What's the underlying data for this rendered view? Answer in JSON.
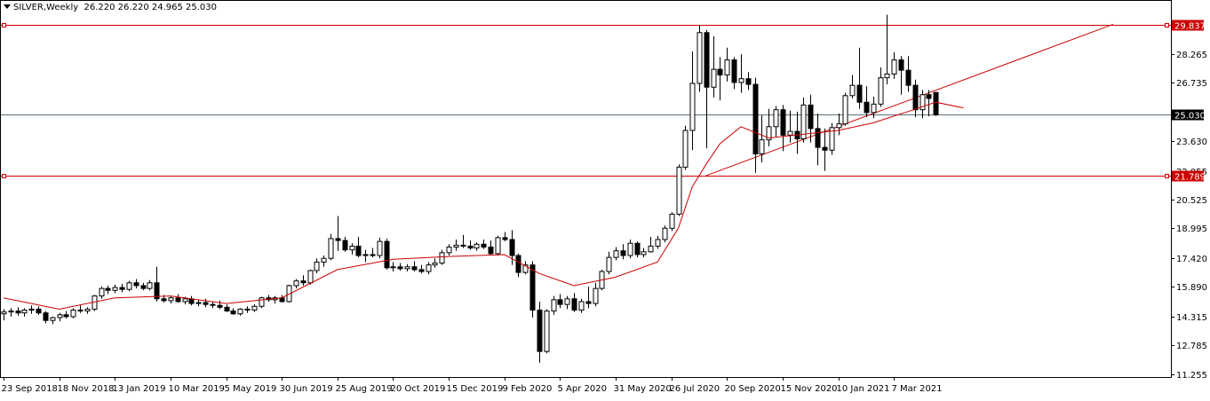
{
  "header": {
    "symbol": "SILVER,Weekly",
    "ohlc": "26.220 26.220 24.965 25.030"
  },
  "colors": {
    "background": "#ffffff",
    "candle_outline": "#000000",
    "bull_body": "#ffffff",
    "bear_body": "#000000",
    "ma_line": "#cc0000",
    "hline_red": "#cc0000",
    "hline_current": "#5a6e7a",
    "label_red": "#cc0000",
    "label_current": "#000000"
  },
  "chart_data": {
    "type": "candlestick",
    "timeframe": "Weekly",
    "ylim": [
      11.255,
      31.1
    ],
    "y_ticks": [
      "28.265",
      "26.735",
      "23.630",
      "22.055",
      "20.525",
      "18.995",
      "17.420",
      "15.890",
      "14.315",
      "12.785",
      "11.255"
    ],
    "x_ticks": [
      "23 Sep 2018",
      "18 Nov 2018",
      "13 Jan 2019",
      "10 Mar 2019",
      "5 May 2019",
      "30 Jun 2019",
      "25 Aug 2019",
      "20 Oct 2019",
      "15 Dec 2019",
      "9 Feb 2020",
      "5 Apr 2020",
      "31 May 2020",
      "26 Jul 2020",
      "20 Sep 2020",
      "15 Nov 2020",
      "10 Jan 2021",
      "7 Mar 2021"
    ],
    "ohlc": [
      [
        14.45,
        14.7,
        14.1,
        14.55
      ],
      [
        14.55,
        14.75,
        14.3,
        14.6
      ],
      [
        14.6,
        14.8,
        14.35,
        14.5
      ],
      [
        14.5,
        14.75,
        14.3,
        14.65
      ],
      [
        14.65,
        14.9,
        14.45,
        14.7
      ],
      [
        14.7,
        14.85,
        14.4,
        14.5
      ],
      [
        14.5,
        14.6,
        13.95,
        14.1
      ],
      [
        14.1,
        14.3,
        13.9,
        14.25
      ],
      [
        14.25,
        14.5,
        14.05,
        14.4
      ],
      [
        14.4,
        14.6,
        14.2,
        14.3
      ],
      [
        14.3,
        14.75,
        14.2,
        14.65
      ],
      [
        14.65,
        14.9,
        14.5,
        14.6
      ],
      [
        14.6,
        14.8,
        14.45,
        14.7
      ],
      [
        14.7,
        15.45,
        14.6,
        15.4
      ],
      [
        15.4,
        15.9,
        15.25,
        15.8
      ],
      [
        15.8,
        15.95,
        15.5,
        15.7
      ],
      [
        15.7,
        16.0,
        15.55,
        15.85
      ],
      [
        15.85,
        16.05,
        15.6,
        15.75
      ],
      [
        15.75,
        16.2,
        15.65,
        16.1
      ],
      [
        16.1,
        16.3,
        15.8,
        15.95
      ],
      [
        15.95,
        16.1,
        15.7,
        15.8
      ],
      [
        15.8,
        16.25,
        15.7,
        16.1
      ],
      [
        16.1,
        16.95,
        15.1,
        15.25
      ],
      [
        15.25,
        15.45,
        15.05,
        15.15
      ],
      [
        15.15,
        15.4,
        15.0,
        15.3
      ],
      [
        15.3,
        15.5,
        15.05,
        15.1
      ],
      [
        15.1,
        15.35,
        14.95,
        15.25
      ],
      [
        15.25,
        15.4,
        14.9,
        15.0
      ],
      [
        15.0,
        15.2,
        14.85,
        15.05
      ],
      [
        15.05,
        15.25,
        14.8,
        14.95
      ],
      [
        14.95,
        15.1,
        14.75,
        14.9
      ],
      [
        14.9,
        15.15,
        14.7,
        14.8
      ],
      [
        14.8,
        14.95,
        14.55,
        14.6
      ],
      [
        14.6,
        14.75,
        14.4,
        14.45
      ],
      [
        14.45,
        14.75,
        14.35,
        14.7
      ],
      [
        14.7,
        14.85,
        14.5,
        14.65
      ],
      [
        14.65,
        14.95,
        14.55,
        14.85
      ],
      [
        14.85,
        15.35,
        14.75,
        15.3
      ],
      [
        15.3,
        15.45,
        15.1,
        15.2
      ],
      [
        15.2,
        15.4,
        15.0,
        15.3
      ],
      [
        15.3,
        15.45,
        15.05,
        15.1
      ],
      [
        15.1,
        16.0,
        15.05,
        15.95
      ],
      [
        15.95,
        16.3,
        15.8,
        16.2
      ],
      [
        16.2,
        16.5,
        15.95,
        16.1
      ],
      [
        16.1,
        16.8,
        16.0,
        16.75
      ],
      [
        16.75,
        17.4,
        16.6,
        17.2
      ],
      [
        17.2,
        17.55,
        16.95,
        17.4
      ],
      [
        17.4,
        18.7,
        17.3,
        18.45
      ],
      [
        18.45,
        19.65,
        17.8,
        18.35
      ],
      [
        18.35,
        18.55,
        17.75,
        17.85
      ],
      [
        17.85,
        18.2,
        17.6,
        18.05
      ],
      [
        18.05,
        18.55,
        17.45,
        17.55
      ],
      [
        17.55,
        17.85,
        17.2,
        17.6
      ],
      [
        17.6,
        17.95,
        17.45,
        17.55
      ],
      [
        17.55,
        18.5,
        17.4,
        18.3
      ],
      [
        18.3,
        18.45,
        16.8,
        16.9
      ],
      [
        16.9,
        17.2,
        16.7,
        16.95
      ],
      [
        16.95,
        17.15,
        16.75,
        16.85
      ],
      [
        16.85,
        17.1,
        16.7,
        16.95
      ],
      [
        16.95,
        17.25,
        16.7,
        16.8
      ],
      [
        16.8,
        17.05,
        16.6,
        16.7
      ],
      [
        16.7,
        17.2,
        16.55,
        17.05
      ],
      [
        17.05,
        17.4,
        16.9,
        17.15
      ],
      [
        17.15,
        17.85,
        17.05,
        17.7
      ],
      [
        17.7,
        18.15,
        17.55,
        18.0
      ],
      [
        18.0,
        18.4,
        17.8,
        18.1
      ],
      [
        18.1,
        18.65,
        17.95,
        18.05
      ],
      [
        18.05,
        18.35,
        17.85,
        17.95
      ],
      [
        17.95,
        18.25,
        17.8,
        18.15
      ],
      [
        18.15,
        18.4,
        17.9,
        18.0
      ],
      [
        18.0,
        18.35,
        17.55,
        17.65
      ],
      [
        17.65,
        18.6,
        17.55,
        18.5
      ],
      [
        18.5,
        18.8,
        18.3,
        18.4
      ],
      [
        18.4,
        18.9,
        17.05,
        17.55
      ],
      [
        17.55,
        17.65,
        16.4,
        16.65
      ],
      [
        16.65,
        17.25,
        16.55,
        17.05
      ],
      [
        17.05,
        17.25,
        14.25,
        14.65
      ],
      [
        14.65,
        15.1,
        11.85,
        12.45
      ],
      [
        12.45,
        14.7,
        12.35,
        14.6
      ],
      [
        14.6,
        15.4,
        14.4,
        15.2
      ],
      [
        15.2,
        15.5,
        14.75,
        14.95
      ],
      [
        14.95,
        15.4,
        14.7,
        15.25
      ],
      [
        15.25,
        15.55,
        14.55,
        14.65
      ],
      [
        14.65,
        15.25,
        14.5,
        15.1
      ],
      [
        15.1,
        15.9,
        14.75,
        15.0
      ],
      [
        15.0,
        16.1,
        14.85,
        15.8
      ],
      [
        15.8,
        16.8,
        15.7,
        16.7
      ],
      [
        16.7,
        17.75,
        16.55,
        17.45
      ],
      [
        17.45,
        18.0,
        17.3,
        17.8
      ],
      [
        17.8,
        18.15,
        17.35,
        17.55
      ],
      [
        17.55,
        18.4,
        17.4,
        18.2
      ],
      [
        18.2,
        18.3,
        17.45,
        17.6
      ],
      [
        17.6,
        17.95,
        17.45,
        17.75
      ],
      [
        17.75,
        18.55,
        17.7,
        18.05
      ],
      [
        18.05,
        18.6,
        17.9,
        18.4
      ],
      [
        18.4,
        19.15,
        18.25,
        19.0
      ],
      [
        19.0,
        19.85,
        18.85,
        19.75
      ],
      [
        19.75,
        22.4,
        19.65,
        22.25
      ],
      [
        22.25,
        24.45,
        22.1,
        24.2
      ],
      [
        24.2,
        28.4,
        23.15,
        26.7
      ],
      [
        26.7,
        29.8,
        26.25,
        29.4
      ],
      [
        29.4,
        29.55,
        23.25,
        26.5
      ],
      [
        26.5,
        29.2,
        25.95,
        27.45
      ],
      [
        27.45,
        28.1,
        25.8,
        27.15
      ],
      [
        27.15,
        28.6,
        26.8,
        27.95
      ],
      [
        27.95,
        28.1,
        26.4,
        26.75
      ],
      [
        26.75,
        28.25,
        26.2,
        26.95
      ],
      [
        26.95,
        27.3,
        26.35,
        26.65
      ],
      [
        26.65,
        27.0,
        21.95,
        22.95
      ],
      [
        22.95,
        25.0,
        22.5,
        23.7
      ],
      [
        23.7,
        25.35,
        23.35,
        24.4
      ],
      [
        24.4,
        25.5,
        23.85,
        25.3
      ],
      [
        25.3,
        25.55,
        23.1,
        23.95
      ],
      [
        23.95,
        25.25,
        23.55,
        24.15
      ],
      [
        24.15,
        25.2,
        22.95,
        23.75
      ],
      [
        23.75,
        25.95,
        23.55,
        25.55
      ],
      [
        25.55,
        26.1,
        23.55,
        24.3
      ],
      [
        24.3,
        25.1,
        22.35,
        23.3
      ],
      [
        23.3,
        24.3,
        22.05,
        23.15
      ],
      [
        23.15,
        24.6,
        22.9,
        24.35
      ],
      [
        24.35,
        25.1,
        23.95,
        24.55
      ],
      [
        24.55,
        26.2,
        24.45,
        26.05
      ],
      [
        26.05,
        27.15,
        25.9,
        26.6
      ],
      [
        26.6,
        28.6,
        25.35,
        25.7
      ],
      [
        25.7,
        26.55,
        24.9,
        25.15
      ],
      [
        25.15,
        26.0,
        24.85,
        25.6
      ],
      [
        25.6,
        27.55,
        25.45,
        27.0
      ],
      [
        27.0,
        30.35,
        26.65,
        27.2
      ],
      [
        27.2,
        28.35,
        26.95,
        27.95
      ],
      [
        27.95,
        28.15,
        26.1,
        27.4
      ],
      [
        27.4,
        28.15,
        26.25,
        26.6
      ],
      [
        26.6,
        26.9,
        24.9,
        25.3
      ],
      [
        25.3,
        26.35,
        24.85,
        26.1
      ],
      [
        26.1,
        26.35,
        24.95,
        25.9
      ],
      [
        26.22,
        26.22,
        24.965,
        25.03
      ]
    ],
    "moving_average": {
      "weeks": [
        0,
        8,
        16,
        24,
        32,
        40,
        48,
        56,
        64,
        72,
        77,
        82,
        88,
        94,
        97,
        99,
        101,
        103,
        106,
        110,
        115,
        120,
        125,
        130,
        134,
        138
      ],
      "values": [
        15.3,
        14.7,
        15.3,
        15.4,
        15.0,
        15.3,
        16.8,
        17.35,
        17.5,
        17.6,
        16.6,
        15.95,
        16.4,
        17.2,
        19.0,
        21.2,
        22.4,
        23.5,
        24.4,
        23.8,
        24.0,
        24.2,
        24.6,
        25.2,
        25.7,
        25.4
      ]
    },
    "horizontal_lines": [
      {
        "price": 29.837,
        "label": "29.837",
        "style": "red"
      },
      {
        "price": 25.03,
        "label": "25.030",
        "style": "current"
      },
      {
        "price": 21.789,
        "label": "21.789",
        "style": "red"
      }
    ],
    "trend_lines": [
      {
        "from": [
          101,
          21.8
        ],
        "to": [
          159.5,
          29.84
        ]
      }
    ],
    "grid": false,
    "legend": "none"
  }
}
